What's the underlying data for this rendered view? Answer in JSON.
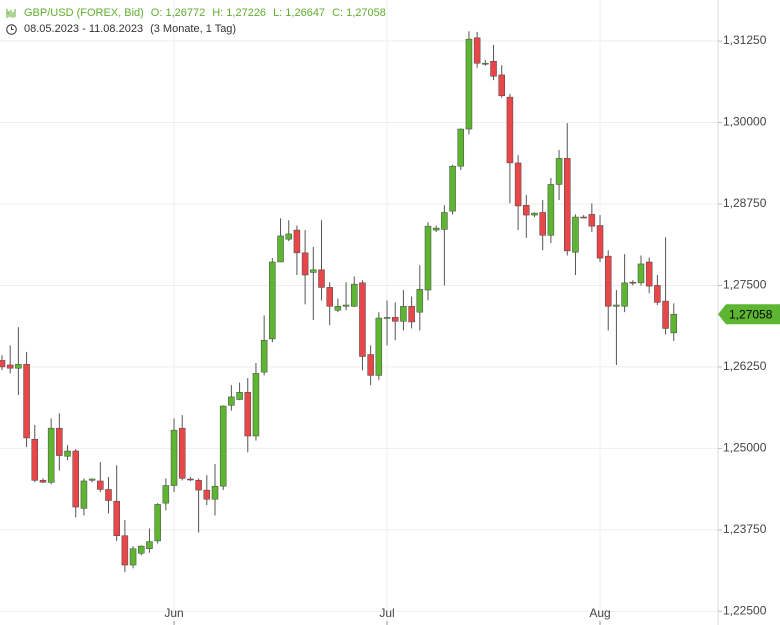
{
  "header": {
    "instrument": "GBP/USD (FOREX, Bid)",
    "open": "O: 1,26772",
    "high": "H: 1,27226",
    "low": "L: 1,26647",
    "close": "C: 1,27058",
    "range": "08.05.2023 - 11.08.2023",
    "period": "(3 Monate, 1 Tag)"
  },
  "chart_data": {
    "type": "candlestick",
    "categories": [
      null,
      null,
      null,
      null,
      null,
      null,
      null,
      null,
      null,
      null,
      null,
      null,
      null,
      null,
      null,
      null,
      null,
      null,
      null,
      null,
      null,
      null,
      null,
      null,
      null,
      null,
      null,
      null,
      null,
      null,
      null,
      null,
      null,
      null,
      null,
      null,
      null,
      null,
      null,
      null,
      null,
      null,
      null,
      null,
      null,
      null,
      null,
      null,
      null,
      null,
      null,
      null,
      null,
      null,
      null,
      null,
      null,
      null,
      null,
      null,
      null,
      null,
      null,
      null,
      null,
      null,
      null,
      null,
      null,
      null,
      null,
      null,
      null,
      null,
      null,
      null,
      null,
      null,
      null,
      null,
      null,
      null,
      null
    ],
    "open": [
      1.2635,
      1.2628,
      1.2623,
      1.2629,
      1.2514,
      1.2451,
      1.2448,
      1.2531,
      1.2488,
      1.2496,
      1.2408,
      1.2451,
      1.245,
      1.2437,
      1.2419,
      1.2366,
      1.2321,
      1.2339,
      1.2346,
      1.2358,
      1.2416,
      1.2443,
      1.2531,
      1.2453,
      1.2451,
      1.2436,
      1.2422,
      1.2442,
      1.2566,
      1.2575,
      1.2586,
      1.2519,
      1.2617,
      1.2668,
      1.2786,
      1.2821,
      1.2835,
      1.28,
      1.277,
      1.2774,
      1.2747,
      1.2712,
      1.2718,
      1.2718,
      1.2754,
      1.2644,
      1.2612,
      1.27,
      1.2701,
      1.2695,
      1.2718,
      1.2709,
      1.2743,
      1.2835,
      1.2836,
      1.2864,
      1.2933,
      1.299,
      1.313,
      1.309,
      1.3094,
      1.3073,
      1.3039,
      1.2938,
      1.2873,
      1.2858,
      1.2862,
      1.2827,
      1.2905,
      1.2945,
      1.2801,
      1.2855,
      1.2859,
      1.2842,
      1.2795,
      1.2718,
      1.2718,
      1.2755,
      1.2754,
      1.2786,
      1.275,
      1.2726,
      1.26772
    ],
    "high": [
      1.2643,
      1.2658,
      1.2686,
      1.2648,
      1.2536,
      1.2454,
      1.2546,
      1.2554,
      1.2505,
      1.2499,
      1.2454,
      1.2454,
      1.2479,
      1.2456,
      1.2474,
      1.239,
      1.235,
      1.2351,
      1.2377,
      1.2416,
      1.2454,
      1.2546,
      1.2551,
      1.2456,
      1.2454,
      1.2459,
      1.2476,
      1.2566,
      1.2597,
      1.2601,
      1.2608,
      1.2631,
      1.2704,
      1.2792,
      1.2853,
      1.285,
      1.2842,
      1.2835,
      1.2809,
      1.285,
      1.2755,
      1.273,
      1.2755,
      1.2764,
      1.2758,
      1.2658,
      1.2709,
      1.2727,
      1.2724,
      1.2743,
      1.2733,
      1.2781,
      1.2847,
      1.2842,
      1.2873,
      1.2935,
      1.2991,
      1.314,
      1.3139,
      1.3096,
      1.3119,
      1.3088,
      1.3044,
      1.295,
      1.2889,
      1.2862,
      1.2881,
      1.2915,
      1.2958,
      1.2999,
      1.2859,
      1.2858,
      1.2876,
      1.2858,
      1.2804,
      1.2743,
      1.2798,
      1.2758,
      1.2796,
      1.2793,
      1.2766,
      1.2824,
      1.27226
    ],
    "low": [
      1.262,
      1.2615,
      1.2582,
      1.2502,
      1.2448,
      1.2447,
      1.2445,
      1.2466,
      1.2482,
      1.2394,
      1.2397,
      1.2448,
      1.2433,
      1.24,
      1.2358,
      1.231,
      1.2316,
      1.2336,
      1.234,
      1.2354,
      1.2405,
      1.2433,
      1.2451,
      1.245,
      1.2371,
      1.2413,
      1.2397,
      1.2436,
      1.2558,
      1.2574,
      1.2494,
      1.2512,
      1.2612,
      1.2663,
      1.2786,
      1.2818,
      1.2766,
      1.2721,
      1.2697,
      1.2727,
      1.2689,
      1.2709,
      1.2712,
      1.2717,
      1.262,
      1.2597,
      1.2605,
      1.2658,
      1.2666,
      1.2681,
      1.2684,
      1.2681,
      1.2727,
      1.2832,
      1.275,
      1.2859,
      1.2927,
      1.2982,
      1.3084,
      1.3087,
      1.3065,
      1.3038,
      1.2876,
      1.2835,
      1.2823,
      1.2855,
      1.2804,
      1.2815,
      1.2881,
      1.2796,
      1.2766,
      1.2853,
      1.2832,
      1.2786,
      1.2681,
      1.2628,
      1.2709,
      1.275,
      1.275,
      1.2738,
      1.272,
      1.2675,
      1.26647
    ],
    "close": [
      1.2625,
      1.2623,
      1.2629,
      1.2516,
      1.2451,
      1.2448,
      1.2531,
      1.2489,
      1.2496,
      1.241,
      1.245,
      1.2453,
      1.2437,
      1.242,
      1.2366,
      1.2321,
      1.2346,
      1.235,
      1.2357,
      1.2414,
      1.2443,
      1.2528,
      1.2454,
      1.2452,
      1.2436,
      1.2422,
      1.2442,
      1.2565,
      1.2579,
      1.2586,
      1.2519,
      1.2615,
      1.2666,
      1.2786,
      1.2826,
      1.2829,
      1.28,
      1.2766,
      1.2774,
      1.2747,
      1.2718,
      1.2718,
      1.272,
      1.2752,
      1.2641,
      1.2612,
      1.27,
      1.2701,
      1.2695,
      1.2718,
      1.2694,
      1.2744,
      1.2841,
      1.2838,
      1.2862,
      1.2933,
      1.299,
      1.3128,
      1.3091,
      1.3091,
      1.3071,
      1.3041,
      1.2938,
      1.2872,
      1.2858,
      1.2861,
      1.2827,
      1.2905,
      1.2945,
      1.2803,
      1.2855,
      1.2854,
      1.2841,
      1.2792,
      1.2718,
      1.272,
      1.2754,
      1.2754,
      1.2783,
      1.2749,
      1.2724,
      1.2684,
      1.27058
    ],
    "up_color": "#5db531",
    "down_color": "#e8474a",
    "xlim": [
      -0.244,
      87.4
    ],
    "xticks": [
      {
        "value": 21,
        "label": "Jun"
      },
      {
        "value": 47,
        "label": "Jul"
      },
      {
        "value": 73,
        "label": "Aug"
      }
    ],
    "ylim": [
      1.2229,
      1.3188
    ],
    "yticks": [
      {
        "value": 1.225,
        "label": "1,22500"
      },
      {
        "value": 1.2375,
        "label": "1,23750"
      },
      {
        "value": 1.25,
        "label": "1,25000"
      },
      {
        "value": 1.2625,
        "label": "1,26250"
      },
      {
        "value": 1.275,
        "label": "1,27500"
      },
      {
        "value": 1.2875,
        "label": "1,28750"
      },
      {
        "value": 1.3,
        "label": "1,30000"
      },
      {
        "value": 1.3125,
        "label": "1,31250"
      }
    ],
    "last": {
      "value": 1.27058,
      "label": "1,27058"
    },
    "grid": true
  }
}
